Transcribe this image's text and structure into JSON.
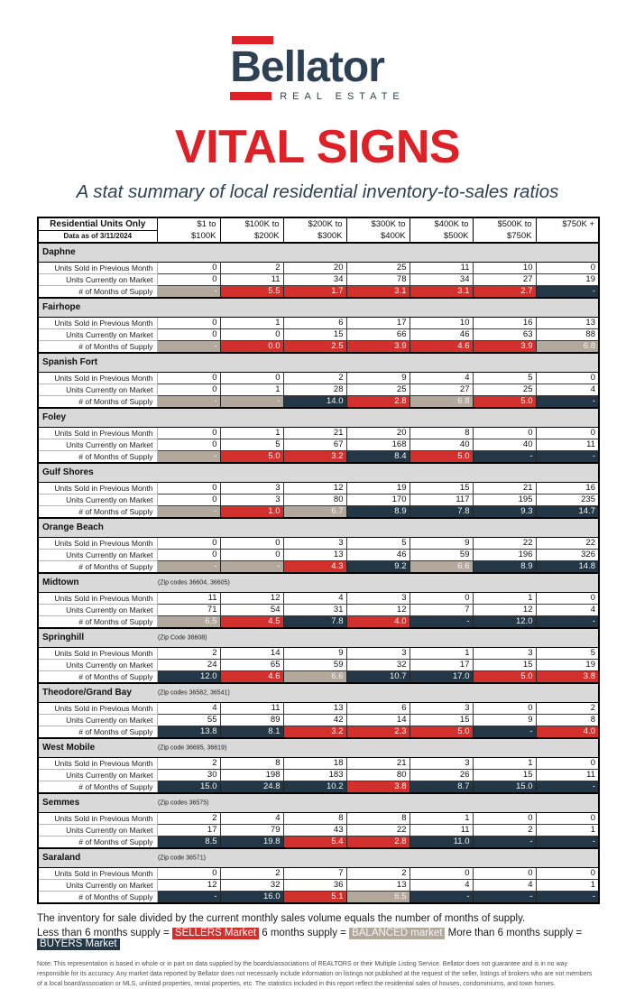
{
  "logo": {
    "name": "Bellator",
    "tagline": "REAL ESTATE"
  },
  "title": "VITAL SIGNS",
  "subtitle": "A stat summary of local residential inventory-to-sales ratios",
  "colors": {
    "brand_red": "#dd2127",
    "brand_navy": "#2e4053",
    "sellers_red": "#d2302c",
    "balanced_tan": "#b3a89c",
    "buyers_navy": "#243746",
    "section_band_gray": "#d9d9d9"
  },
  "table": {
    "header": {
      "title": "Residential Units Only",
      "subtitle": "Data as of 3/11/2024",
      "columns": [
        {
          "l1": "$1 to",
          "l2": "$100K"
        },
        {
          "l1": "$100K to",
          "l2": "$200K"
        },
        {
          "l1": "$200K to",
          "l2": "$300K"
        },
        {
          "l1": "$300K to",
          "l2": "$400K"
        },
        {
          "l1": "$400K to",
          "l2": "$500K"
        },
        {
          "l1": "$500K to",
          "l2": "$750K"
        },
        {
          "l1": "$750K +",
          "l2": ""
        }
      ]
    },
    "row_labels": [
      "Units Sold in Previous Month",
      "Units Currently on Market",
      "# of Months of Supply"
    ],
    "sections": [
      {
        "name": "Daphne",
        "zip": "",
        "sold": [
          "0",
          "2",
          "20",
          "25",
          "11",
          "10",
          "0"
        ],
        "market": [
          "0",
          "11",
          "34",
          "78",
          "34",
          "27",
          "19"
        ],
        "supply": [
          {
            "v": "-",
            "m": "balanced"
          },
          {
            "v": "5.5",
            "m": "sellers"
          },
          {
            "v": "1.7",
            "m": "sellers"
          },
          {
            "v": "3.1",
            "m": "sellers"
          },
          {
            "v": "3.1",
            "m": "sellers"
          },
          {
            "v": "2.7",
            "m": "sellers"
          },
          {
            "v": "-",
            "m": "buyers"
          }
        ]
      },
      {
        "name": "Fairhope",
        "zip": "",
        "sold": [
          "0",
          "1",
          "6",
          "17",
          "10",
          "16",
          "13"
        ],
        "market": [
          "0",
          "0",
          "15",
          "66",
          "46",
          "63",
          "88"
        ],
        "supply": [
          {
            "v": "-",
            "m": "balanced"
          },
          {
            "v": "0.0",
            "m": "sellers"
          },
          {
            "v": "2.5",
            "m": "sellers"
          },
          {
            "v": "3.9",
            "m": "sellers"
          },
          {
            "v": "4.6",
            "m": "sellers"
          },
          {
            "v": "3.9",
            "m": "sellers"
          },
          {
            "v": "6.8",
            "m": "balanced"
          }
        ]
      },
      {
        "name": "Spanish Fort",
        "zip": "",
        "sold": [
          "0",
          "0",
          "2",
          "9",
          "4",
          "5",
          "0"
        ],
        "market": [
          "0",
          "1",
          "28",
          "25",
          "27",
          "25",
          "4"
        ],
        "supply": [
          {
            "v": "-",
            "m": "balanced"
          },
          {
            "v": "-",
            "m": "balanced"
          },
          {
            "v": "14.0",
            "m": "buyers"
          },
          {
            "v": "2.8",
            "m": "sellers"
          },
          {
            "v": "6.8",
            "m": "balanced"
          },
          {
            "v": "5.0",
            "m": "sellers"
          },
          {
            "v": "-",
            "m": "buyers"
          }
        ]
      },
      {
        "name": "Foley",
        "zip": "",
        "sold": [
          "0",
          "1",
          "21",
          "20",
          "8",
          "0",
          "0"
        ],
        "market": [
          "0",
          "5",
          "67",
          "168",
          "40",
          "40",
          "11"
        ],
        "supply": [
          {
            "v": "-",
            "m": "balanced"
          },
          {
            "v": "5.0",
            "m": "sellers"
          },
          {
            "v": "3.2",
            "m": "sellers"
          },
          {
            "v": "8.4",
            "m": "buyers"
          },
          {
            "v": "5.0",
            "m": "sellers"
          },
          {
            "v": "-",
            "m": "buyers"
          },
          {
            "v": "-",
            "m": "buyers"
          }
        ]
      },
      {
        "name": "Gulf Shores",
        "zip": "",
        "sold": [
          "0",
          "3",
          "12",
          "19",
          "15",
          "21",
          "16"
        ],
        "market": [
          "0",
          "3",
          "80",
          "170",
          "117",
          "195",
          "235"
        ],
        "supply": [
          {
            "v": "-",
            "m": "balanced"
          },
          {
            "v": "1.0",
            "m": "sellers"
          },
          {
            "v": "6.7",
            "m": "balanced"
          },
          {
            "v": "8.9",
            "m": "buyers"
          },
          {
            "v": "7.8",
            "m": "buyers"
          },
          {
            "v": "9.3",
            "m": "buyers"
          },
          {
            "v": "14.7",
            "m": "buyers"
          }
        ]
      },
      {
        "name": "Orange Beach",
        "zip": "",
        "sold": [
          "0",
          "0",
          "3",
          "5",
          "9",
          "22",
          "22"
        ],
        "market": [
          "0",
          "0",
          "13",
          "46",
          "59",
          "196",
          "326"
        ],
        "supply": [
          {
            "v": "-",
            "m": "balanced"
          },
          {
            "v": "-",
            "m": "balanced"
          },
          {
            "v": "4.3",
            "m": "sellers"
          },
          {
            "v": "9.2",
            "m": "buyers"
          },
          {
            "v": "6.6",
            "m": "balanced"
          },
          {
            "v": "8.9",
            "m": "buyers"
          },
          {
            "v": "14.8",
            "m": "buyers"
          }
        ]
      },
      {
        "name": "Midtown",
        "zip": "(Zip codes 36604, 36605)",
        "sold": [
          "11",
          "12",
          "4",
          "3",
          "0",
          "1",
          "0"
        ],
        "market": [
          "71",
          "54",
          "31",
          "12",
          "7",
          "12",
          "4"
        ],
        "supply": [
          {
            "v": "6.5",
            "m": "balanced"
          },
          {
            "v": "4.5",
            "m": "sellers"
          },
          {
            "v": "7.8",
            "m": "buyers"
          },
          {
            "v": "4.0",
            "m": "sellers"
          },
          {
            "v": "-",
            "m": "buyers"
          },
          {
            "v": "12.0",
            "m": "buyers"
          },
          {
            "v": "-",
            "m": "buyers"
          }
        ]
      },
      {
        "name": "Springhill",
        "zip": "(Zip Code 36608)",
        "sold": [
          "2",
          "14",
          "9",
          "3",
          "1",
          "3",
          "5"
        ],
        "market": [
          "24",
          "65",
          "59",
          "32",
          "17",
          "15",
          "19"
        ],
        "supply": [
          {
            "v": "12.0",
            "m": "buyers"
          },
          {
            "v": "4.6",
            "m": "sellers"
          },
          {
            "v": "6.6",
            "m": "balanced"
          },
          {
            "v": "10.7",
            "m": "buyers"
          },
          {
            "v": "17.0",
            "m": "buyers"
          },
          {
            "v": "5.0",
            "m": "sellers"
          },
          {
            "v": "3.8",
            "m": "sellers"
          }
        ]
      },
      {
        "name": "Theodore/Grand Bay",
        "zip": "(Zip codes 36582, 36541)",
        "sold": [
          "4",
          "11",
          "13",
          "6",
          "3",
          "0",
          "2"
        ],
        "market": [
          "55",
          "89",
          "42",
          "14",
          "15",
          "9",
          "8"
        ],
        "supply": [
          {
            "v": "13.8",
            "m": "buyers"
          },
          {
            "v": "8.1",
            "m": "buyers"
          },
          {
            "v": "3.2",
            "m": "sellers"
          },
          {
            "v": "2.3",
            "m": "sellers"
          },
          {
            "v": "5.0",
            "m": "sellers"
          },
          {
            "v": "-",
            "m": "buyers"
          },
          {
            "v": "4.0",
            "m": "sellers"
          }
        ]
      },
      {
        "name": "West Mobile",
        "zip": "(Zip code 36695, 36619)",
        "sold": [
          "2",
          "8",
          "18",
          "21",
          "3",
          "1",
          "0"
        ],
        "market": [
          "30",
          "198",
          "183",
          "80",
          "26",
          "15",
          "11"
        ],
        "supply": [
          {
            "v": "15.0",
            "m": "buyers"
          },
          {
            "v": "24.8",
            "m": "buyers"
          },
          {
            "v": "10.2",
            "m": "buyers"
          },
          {
            "v": "3.8",
            "m": "sellers"
          },
          {
            "v": "8.7",
            "m": "buyers"
          },
          {
            "v": "15.0",
            "m": "buyers"
          },
          {
            "v": "-",
            "m": "buyers"
          }
        ]
      },
      {
        "name": "Semmes",
        "zip": "(Zip codes 36575)",
        "sold": [
          "2",
          "4",
          "8",
          "8",
          "1",
          "0",
          "0"
        ],
        "market": [
          "17",
          "79",
          "43",
          "22",
          "11",
          "2",
          "1"
        ],
        "supply": [
          {
            "v": "8.5",
            "m": "buyers"
          },
          {
            "v": "19.8",
            "m": "buyers"
          },
          {
            "v": "5.4",
            "m": "sellers"
          },
          {
            "v": "2.8",
            "m": "sellers"
          },
          {
            "v": "11.0",
            "m": "buyers"
          },
          {
            "v": "-",
            "m": "buyers"
          },
          {
            "v": "-",
            "m": "buyers"
          }
        ]
      },
      {
        "name": "Saraland",
        "zip": "(Zip code 36571)",
        "sold": [
          "0",
          "2",
          "7",
          "2",
          "0",
          "0",
          "0"
        ],
        "market": [
          "12",
          "32",
          "36",
          "13",
          "4",
          "4",
          "1"
        ],
        "supply": [
          {
            "v": "-",
            "m": "buyers"
          },
          {
            "v": "16.0",
            "m": "buyers"
          },
          {
            "v": "5.1",
            "m": "sellers"
          },
          {
            "v": "6.5",
            "m": "balanced"
          },
          {
            "v": "-",
            "m": "buyers"
          },
          {
            "v": "-",
            "m": "buyers"
          },
          {
            "v": "-",
            "m": "buyers"
          }
        ]
      }
    ]
  },
  "legend": {
    "line1": "The inventory for sale divided by the current monthly sales volume equals the number of months of supply.",
    "items": [
      {
        "prefix": "Less than 6 months supply =",
        "label": "SELLERS Market",
        "market": "sellers"
      },
      {
        "prefix": "6 months supply =",
        "label": "BALANCED market",
        "market": "balanced"
      },
      {
        "prefix": "More than 6 months supply =",
        "label": "BUYERS Market",
        "market": "buyers"
      }
    ]
  },
  "note": "Note: This representation is based in whole or in part on data supplied by the boards/associations of REALTORS or their Multiple Listing Service. Bellator does not guarantee and is in no way responsible for its accuracy. Any market data reported by Bellator does not necessarily include information on listings not published at the request of the seller, listings of brokers who are not members of a local board/association or MLS, unlisted properties, rental properties, etc. The statistics included in this report reflect the residential sales of houses, condominiums, and town homes."
}
